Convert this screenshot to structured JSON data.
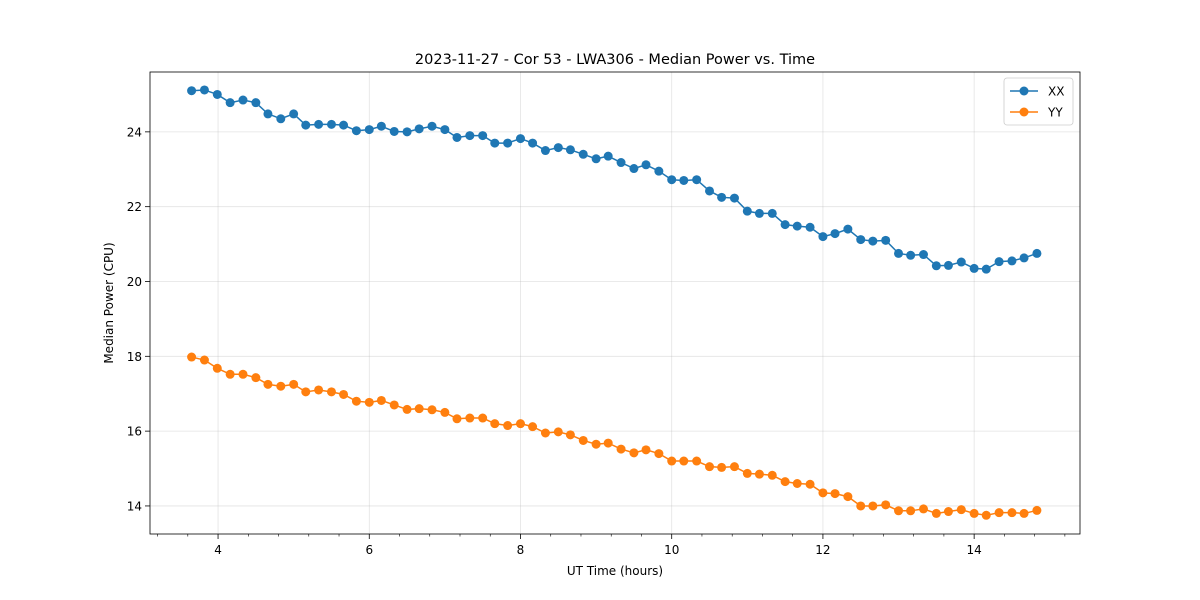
{
  "chart_data": {
    "type": "line",
    "title": "2023-11-27 - Cor 53 - LWA306 - Median Power vs. Time",
    "xlabel": "UT Time (hours)",
    "ylabel": "Median Power (CPU)",
    "xlim": [
      3.1,
      15.4
    ],
    "ylim": [
      13.25,
      25.6
    ],
    "xticks": [
      4,
      6,
      8,
      10,
      12,
      14
    ],
    "xminor_step": 0.4,
    "yticks": [
      14,
      16,
      18,
      20,
      22,
      24
    ],
    "grid": true,
    "legend_position": "top-right",
    "x": [
      3.65,
      3.82,
      3.99,
      4.16,
      4.33,
      4.5,
      4.66,
      4.83,
      5.0,
      5.16,
      5.33,
      5.5,
      5.66,
      5.83,
      6.0,
      6.16,
      6.33,
      6.5,
      6.66,
      6.83,
      7.0,
      7.16,
      7.33,
      7.5,
      7.66,
      7.83,
      8.0,
      8.16,
      8.33,
      8.5,
      8.66,
      8.83,
      9.0,
      9.16,
      9.33,
      9.5,
      9.66,
      9.83,
      10.0,
      10.16,
      10.33,
      10.5,
      10.66,
      10.83,
      11.0,
      11.16,
      11.33,
      11.5,
      11.66,
      11.83,
      12.0,
      12.16,
      12.33,
      12.5,
      12.66,
      12.83,
      13.0,
      13.16,
      13.33,
      13.5,
      13.66,
      13.83,
      14.0,
      14.16,
      14.33,
      14.5,
      14.66,
      14.83
    ],
    "series": [
      {
        "name": "XX",
        "color": "#1f77b4",
        "values": [
          25.1,
          25.12,
          25.0,
          24.78,
          24.85,
          24.78,
          24.48,
          24.35,
          24.48,
          24.18,
          24.2,
          24.2,
          24.18,
          24.03,
          24.06,
          24.15,
          24.01,
          24.0,
          24.08,
          24.15,
          24.06,
          23.85,
          23.9,
          23.9,
          23.7,
          23.7,
          23.82,
          23.7,
          23.5,
          23.58,
          23.52,
          23.4,
          23.28,
          23.35,
          23.18,
          23.02,
          23.12,
          22.95,
          22.72,
          22.7,
          22.72,
          22.42,
          22.25,
          22.23,
          21.88,
          21.82,
          21.82,
          21.52,
          21.48,
          21.45,
          21.2,
          21.28,
          21.4,
          21.12,
          21.08,
          21.1,
          20.75,
          20.7,
          20.72,
          20.42,
          20.43,
          20.52,
          20.35,
          20.33,
          20.53,
          20.55,
          20.63,
          20.75
        ]
      },
      {
        "name": "YY",
        "color": "#ff7f0e",
        "values": [
          17.98,
          17.9,
          17.68,
          17.52,
          17.52,
          17.43,
          17.25,
          17.2,
          17.25,
          17.05,
          17.1,
          17.05,
          16.98,
          16.8,
          16.77,
          16.82,
          16.7,
          16.58,
          16.6,
          16.57,
          16.5,
          16.33,
          16.35,
          16.35,
          16.2,
          16.15,
          16.2,
          16.12,
          15.95,
          15.98,
          15.9,
          15.75,
          15.65,
          15.68,
          15.52,
          15.42,
          15.5,
          15.4,
          15.2,
          15.2,
          15.2,
          15.05,
          15.03,
          15.05,
          14.87,
          14.85,
          14.82,
          14.65,
          14.6,
          14.58,
          14.35,
          14.33,
          14.25,
          14.0,
          14.0,
          14.03,
          13.87,
          13.87,
          13.92,
          13.8,
          13.85,
          13.9,
          13.8,
          13.75,
          13.82,
          13.82,
          13.8,
          13.88
        ]
      }
    ]
  }
}
